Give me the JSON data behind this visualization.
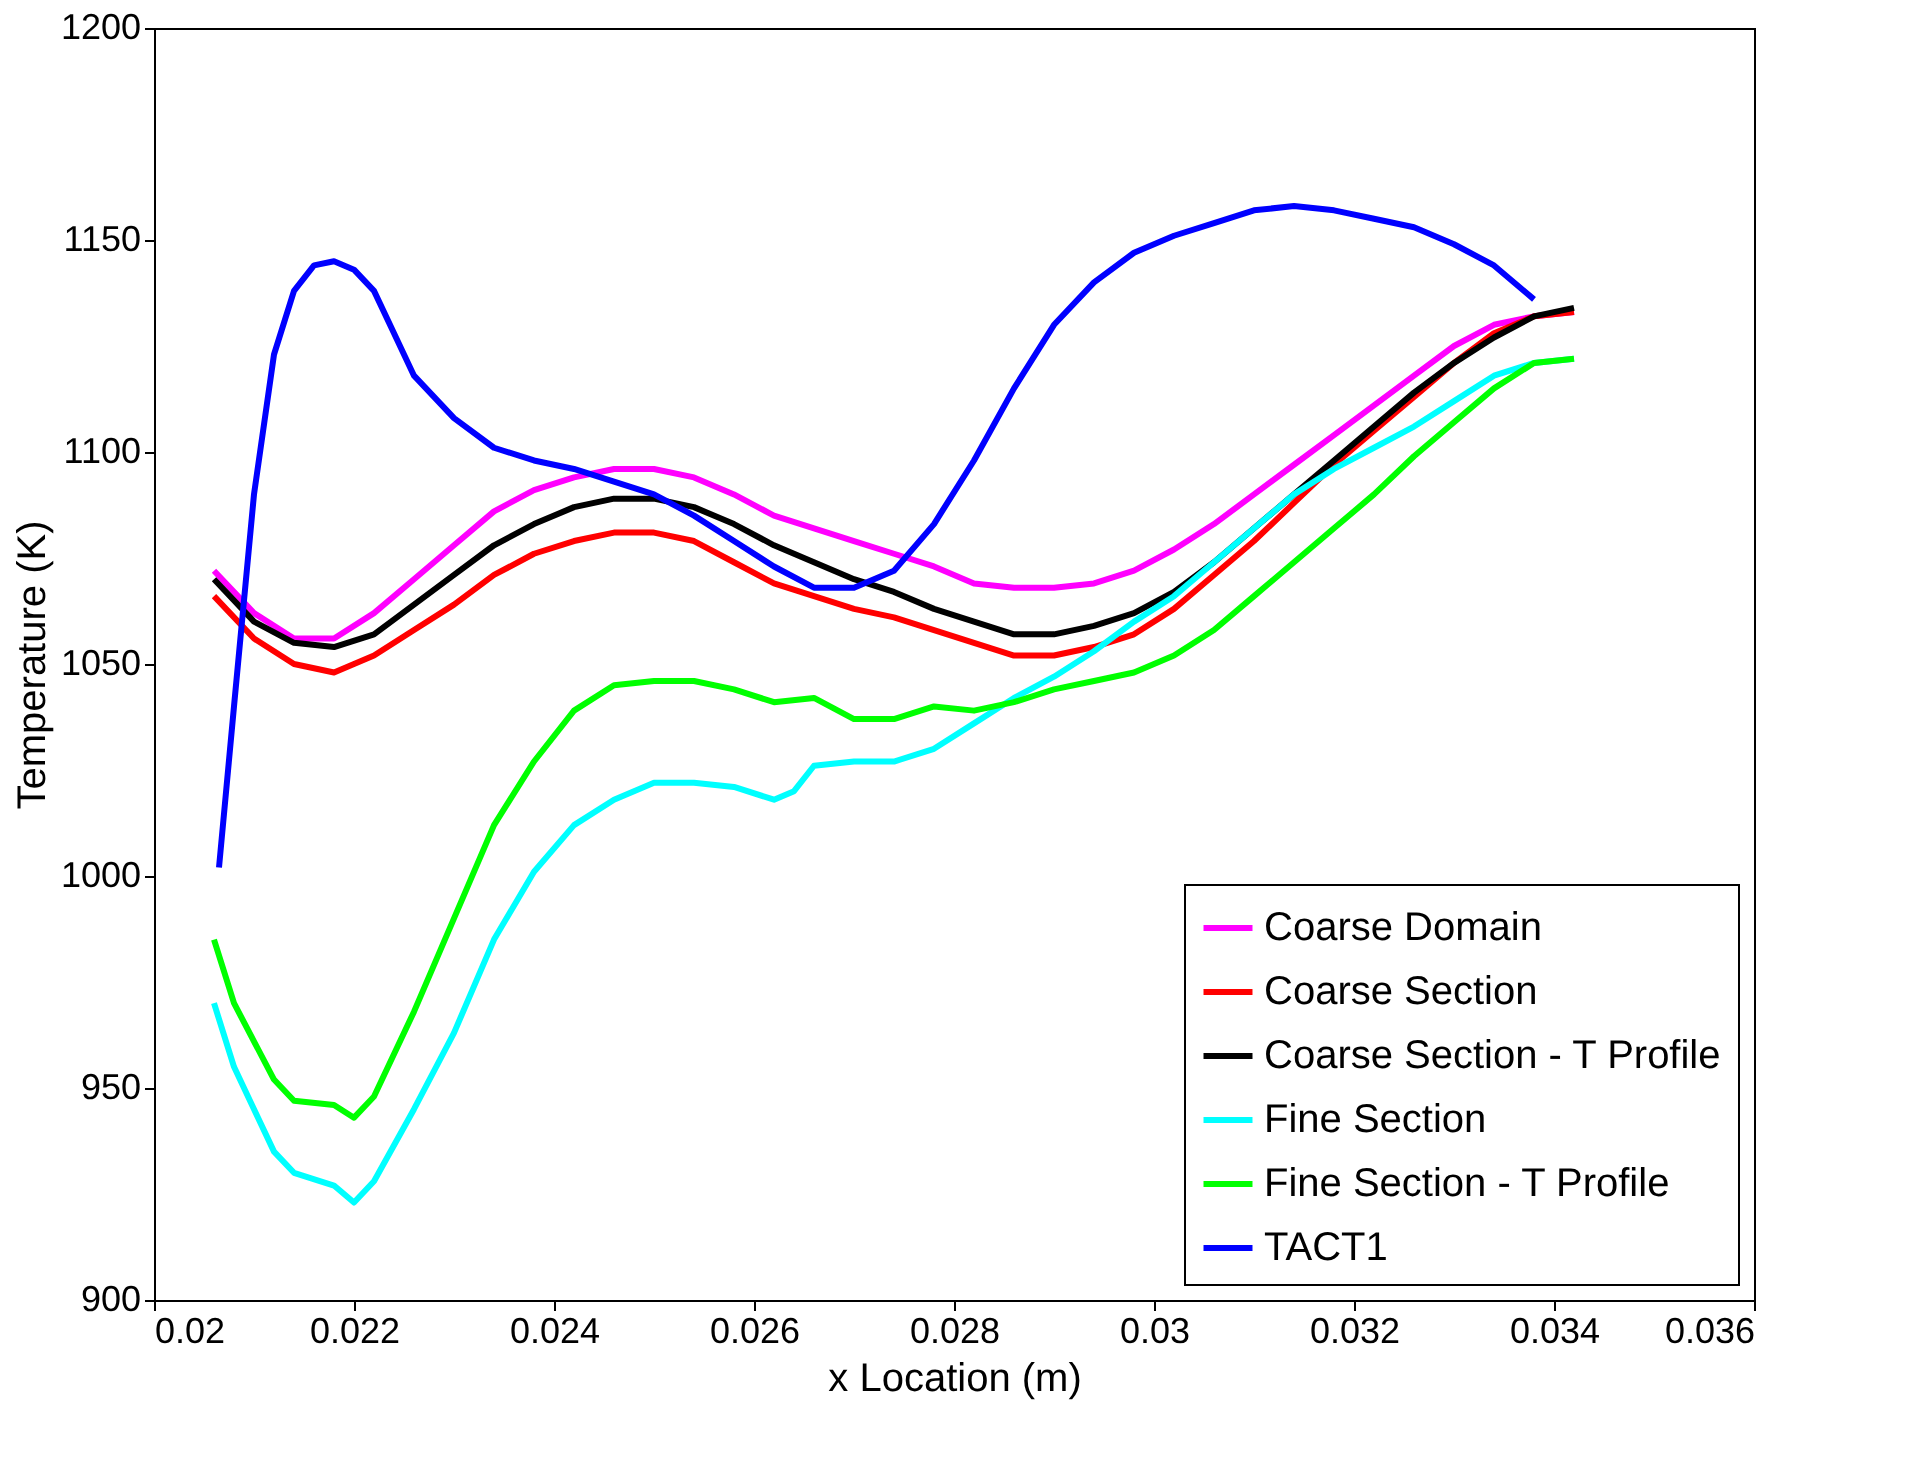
{
  "chart_data": {
    "type": "line",
    "xlabel": "x Location (m)",
    "ylabel": "Temperature (K)",
    "xlim": [
      0.02,
      0.036
    ],
    "xticks": [
      0.02,
      0.022,
      0.024,
      0.026,
      0.028,
      0.03,
      0.032,
      0.034,
      0.036
    ],
    "ylim": [
      900,
      1200
    ],
    "yticks": [
      900,
      950,
      1000,
      1050,
      1100,
      1150,
      1200
    ],
    "grid": false,
    "legend": "bottom right",
    "marker": "none",
    "line_style": "solid",
    "x": [
      0.0206,
      0.021,
      0.0214,
      0.0218,
      0.0222,
      0.0226,
      0.023,
      0.0234,
      0.0238,
      0.0242,
      0.0246,
      0.025,
      0.0254,
      0.0258,
      0.0262,
      0.0266,
      0.027,
      0.0274,
      0.0278,
      0.0282,
      0.0286,
      0.029,
      0.0294,
      0.0298,
      0.0302,
      0.0306,
      0.031,
      0.0314,
      0.0318,
      0.0322,
      0.0326,
      0.033,
      0.0334,
      0.0338,
      0.0342
    ],
    "series": [
      {
        "name": "Coarse Domain",
        "color": "#ff00ff",
        "values": [
          1072,
          1062,
          1056,
          1056,
          1062,
          1070,
          1078,
          1086,
          1091,
          1094,
          1096,
          1096,
          1094,
          1090,
          1085,
          1082,
          1079,
          1076,
          1073,
          1069,
          1068,
          1068,
          1069,
          1072,
          1077,
          1083,
          1090,
          1097,
          1104,
          1111,
          1118,
          1125,
          1130,
          1132,
          1133
        ]
      },
      {
        "name": "Coarse Section",
        "color": "#ff0000",
        "values": [
          1066,
          1056,
          1050,
          1048,
          1052,
          1058,
          1064,
          1071,
          1076,
          1079,
          1081,
          1081,
          1079,
          1074,
          1069,
          1066,
          1063,
          1061,
          1058,
          1055,
          1052,
          1052,
          1054,
          1057,
          1063,
          1071,
          1079,
          1088,
          1097,
          1105,
          1113,
          1121,
          1128,
          1132,
          1133
        ]
      },
      {
        "name": "Coarse Section - T Profile",
        "color": "#000000",
        "values": [
          1070,
          1060,
          1055,
          1054,
          1057,
          1064,
          1071,
          1078,
          1083,
          1087,
          1089,
          1089,
          1087,
          1083,
          1078,
          1074,
          1070,
          1067,
          1063,
          1060,
          1057,
          1057,
          1059,
          1062,
          1067,
          1074,
          1082,
          1090,
          1098,
          1106,
          1114,
          1121,
          1127,
          1132,
          1134
        ]
      },
      {
        "name": "Fine Section",
        "color": "#00ffff",
        "x": [
          0.0206,
          0.0208,
          0.0212,
          0.0214,
          0.0218,
          0.022,
          0.0222,
          0.0226,
          0.023,
          0.0234,
          0.0238,
          0.0242,
          0.0246,
          0.025,
          0.0254,
          0.0258,
          0.0262,
          0.0264,
          0.0266,
          0.027,
          0.0274,
          0.0278,
          0.0282,
          0.0286,
          0.029,
          0.0294,
          0.0298,
          0.0302,
          0.0306,
          0.031,
          0.0314,
          0.0318,
          0.0322,
          0.0326,
          0.033,
          0.0334,
          0.0338,
          0.0342
        ],
        "values": [
          970,
          955,
          935,
          930,
          927,
          923,
          928,
          945,
          963,
          985,
          1001,
          1012,
          1018,
          1022,
          1022,
          1021,
          1018,
          1020,
          1026,
          1027,
          1027,
          1030,
          1036,
          1042,
          1047,
          1053,
          1060,
          1066,
          1074,
          1082,
          1090,
          1096,
          1101,
          1106,
          1112,
          1118,
          1121,
          1122
        ]
      },
      {
        "name": "Fine Section - T Profile",
        "color": "#00ff00",
        "x": [
          0.0206,
          0.0208,
          0.0212,
          0.0214,
          0.0218,
          0.022,
          0.0222,
          0.0226,
          0.023,
          0.0234,
          0.0238,
          0.0242,
          0.0246,
          0.025,
          0.0254,
          0.0258,
          0.0262,
          0.0266,
          0.027,
          0.0274,
          0.0278,
          0.0282,
          0.0286,
          0.029,
          0.0294,
          0.0298,
          0.0302,
          0.0306,
          0.031,
          0.0314,
          0.0318,
          0.0322,
          0.0326,
          0.033,
          0.0334,
          0.0338,
          0.0342
        ],
        "values": [
          985,
          970,
          952,
          947,
          946,
          943,
          948,
          968,
          990,
          1012,
          1027,
          1039,
          1045,
          1046,
          1046,
          1044,
          1041,
          1042,
          1037,
          1037,
          1040,
          1039,
          1041,
          1044,
          1046,
          1048,
          1052,
          1058,
          1066,
          1074,
          1082,
          1090,
          1099,
          1107,
          1115,
          1121,
          1122
        ]
      },
      {
        "name": "TACT1",
        "color": "#0000ff",
        "x": [
          0.02065,
          0.0208,
          0.021,
          0.0212,
          0.0214,
          0.0216,
          0.0218,
          0.022,
          0.0222,
          0.0224,
          0.0226,
          0.023,
          0.0234,
          0.0238,
          0.0242,
          0.0246,
          0.025,
          0.0254,
          0.0258,
          0.0262,
          0.0266,
          0.027,
          0.0274,
          0.0278,
          0.0282,
          0.0286,
          0.029,
          0.0294,
          0.0298,
          0.0302,
          0.0306,
          0.031,
          0.0314,
          0.0318,
          0.0322,
          0.0326,
          0.033,
          0.0334,
          0.0338
        ],
        "values": [
          1002,
          1040,
          1090,
          1123,
          1138,
          1144,
          1145,
          1143,
          1138,
          1128,
          1118,
          1108,
          1101,
          1098,
          1096,
          1093,
          1090,
          1085,
          1079,
          1073,
          1068,
          1068,
          1072,
          1083,
          1098,
          1115,
          1130,
          1140,
          1147,
          1151,
          1154,
          1157,
          1158,
          1157,
          1155,
          1153,
          1149,
          1144,
          1136
        ]
      }
    ]
  }
}
